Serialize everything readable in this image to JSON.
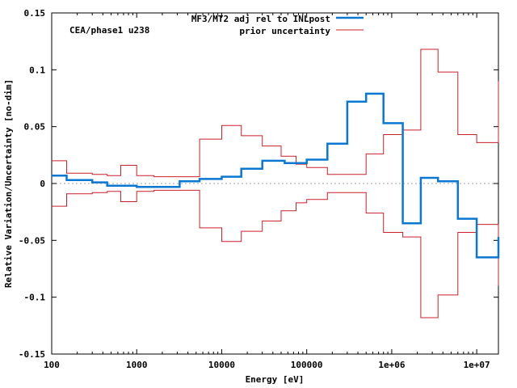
{
  "chart_data": {
    "type": "line",
    "title": "",
    "annotation": "CEA/phase1 u238",
    "xlabel": "Energy [eV]",
    "ylabel": "Relative Variation/Uncertainty [no-dim]",
    "x_scale": "log",
    "xlim": [
      100,
      18000000
    ],
    "ylim": [
      -0.15,
      0.15
    ],
    "x_ticks": [
      {
        "value": 100,
        "label": "100"
      },
      {
        "value": 1000,
        "label": "1000"
      },
      {
        "value": 10000,
        "label": "10000"
      },
      {
        "value": 100000,
        "label": "100000"
      },
      {
        "value": 1000000,
        "label": "1e+06"
      },
      {
        "value": 10000000,
        "label": "1e+07"
      }
    ],
    "y_ticks": [
      {
        "value": 0.15,
        "label": "0.15"
      },
      {
        "value": 0.1,
        "label": "0.1"
      },
      {
        "value": 0.05,
        "label": "0.05"
      },
      {
        "value": 0,
        "label": "0"
      },
      {
        "value": -0.05,
        "label": "-0.05"
      },
      {
        "value": -0.1,
        "label": "-0.1"
      },
      {
        "value": -0.15,
        "label": "-0.15"
      }
    ],
    "zero_line": true,
    "legend_position": "top-right",
    "series": [
      {
        "name": "MF3/MT2 adj rel to INLpost",
        "color": "#0a78d2",
        "style": "step",
        "bin_edges": [
          100,
          150,
          300,
          450,
          1000,
          2000,
          3200,
          5500,
          10000,
          17000,
          30000,
          55000,
          100000,
          175000,
          300000,
          500000,
          800000,
          1350000,
          2200000,
          3500000,
          6000000,
          10000000,
          18000000
        ],
        "values": [
          0.007,
          0.003,
          0.001,
          -0.002,
          -0.003,
          -0.003,
          0.002,
          0.004,
          0.006,
          0.013,
          0.02,
          0.018,
          0.021,
          0.035,
          0.072,
          0.079,
          0.053,
          -0.035,
          0.005,
          0.002,
          -0.031,
          -0.065,
          -0.047
        ]
      },
      {
        "name": "prior uncertainty",
        "color": "#cc1f2a",
        "style": "step",
        "mirrored": true,
        "bin_edges": [
          100,
          150,
          300,
          450,
          650,
          1000,
          1600,
          3200,
          5500,
          10000,
          17000,
          30000,
          50000,
          75000,
          100000,
          175000,
          300000,
          500000,
          800000,
          1350000,
          2200000,
          3500000,
          6000000,
          10000000,
          18000000
        ],
        "values": [
          0.02,
          0.009,
          0.008,
          0.007,
          0.016,
          0.007,
          0.006,
          0.006,
          0.039,
          0.051,
          0.042,
          0.033,
          0.024,
          0.017,
          0.014,
          0.008,
          0.008,
          0.026,
          0.043,
          0.047,
          0.118,
          0.098,
          0.043,
          0.036,
          0.09
        ]
      }
    ]
  }
}
